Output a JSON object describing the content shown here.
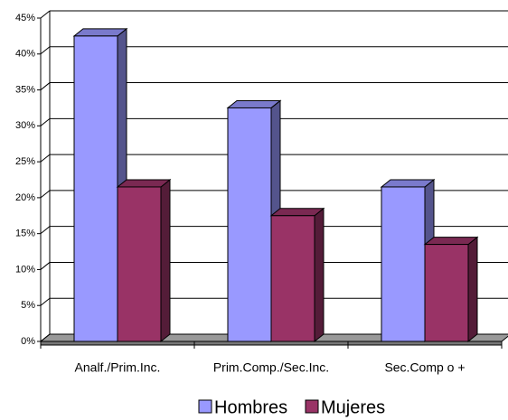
{
  "chart_data": {
    "type": "bar3d",
    "categories": [
      "Analf./Prim.Inc.",
      "Prim.Comp./Sec.Inc.",
      "Sec.Comp o +"
    ],
    "series": [
      {
        "name": "Hombres",
        "color": "#9999ff",
        "values": [
          42.5,
          32.5,
          21.5
        ]
      },
      {
        "name": "Mujeres",
        "color": "#993366",
        "values": [
          21.5,
          17.5,
          13.5
        ]
      }
    ],
    "ylim": [
      0,
      45
    ],
    "yticks": [
      {
        "value": 0,
        "label": "0%"
      },
      {
        "value": 5,
        "label": "5%"
      },
      {
        "value": 10,
        "label": "10%"
      },
      {
        "value": 15,
        "label": "15%"
      },
      {
        "value": 20,
        "label": "20%"
      },
      {
        "value": 25,
        "label": "25%"
      },
      {
        "value": 30,
        "label": "30%"
      },
      {
        "value": 35,
        "label": "35%"
      },
      {
        "value": 40,
        "label": "40%"
      },
      {
        "value": 45,
        "label": "45%"
      }
    ],
    "grid": true,
    "legend": "bottom"
  }
}
